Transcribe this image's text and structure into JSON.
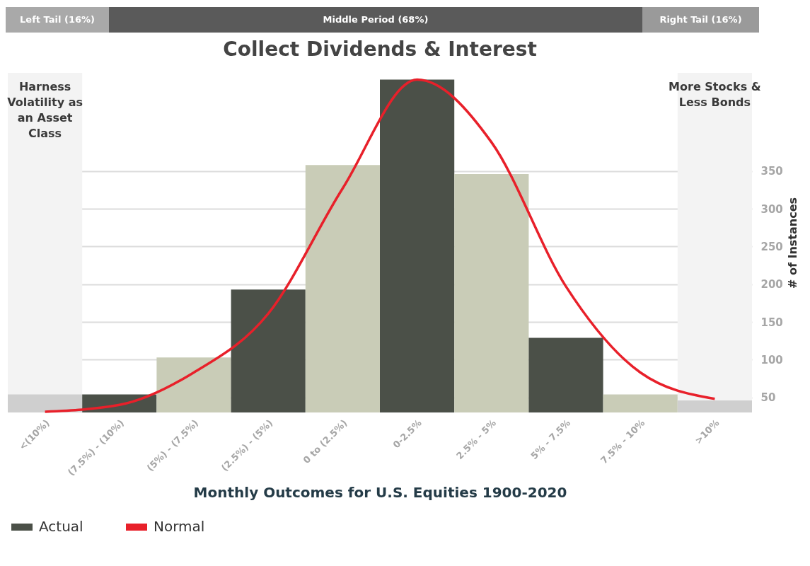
{
  "chart_data": {
    "type": "bar",
    "title": "Collect Dividends & Interest",
    "xlabel": "Monthly Outcomes for U.S. Equities 1900-2020",
    "ylabel": "# of Instances",
    "categories": [
      "<(10%)",
      "(7.5%) - (10%)",
      "(5%) - (7.5%)",
      "(2.5%) - (5%)",
      "0 to (2.5%)",
      "0-2.5%",
      "2.5% - 5%",
      "5% - 7.5%",
      "7.5% - 10%",
      ">10%"
    ],
    "series": [
      {
        "name": "Actual",
        "color": "#4b5048",
        "colors": [
          "#cfcfcf",
          "#4b5048",
          "#c9ccb7",
          "#4b5048",
          "#c9ccb7",
          "#4b5048",
          "#c9ccb7",
          "#4b5048",
          "#c9ccb7",
          "#cfcfcf"
        ],
        "values": [
          54,
          54,
          103,
          193,
          358,
          471,
          346,
          129,
          54,
          46
        ]
      },
      {
        "name": "Normal",
        "type": "line",
        "color": "#e8202a",
        "values": [
          31,
          40,
          83,
          161,
          327,
          471,
          388,
          197,
          83,
          48
        ]
      }
    ],
    "ylim": [
      30,
      480
    ],
    "yticks": [
      50,
      100,
      150,
      200,
      250,
      300,
      350
    ],
    "grid": "y",
    "legend": "bottom",
    "bands": [
      {
        "axis": "x",
        "from": "<(10%)",
        "to": "<(10%)",
        "label": "Harness Volatility as an Asset Class",
        "color": "#f3f3f3"
      },
      {
        "axis": "x",
        "from": ">10%",
        "to": ">10%",
        "label": "More Stocks & Less Bonds",
        "color": "#f3f3f3"
      }
    ],
    "annotations": [
      "Left Tail (16%)",
      "Middle Period (68%)",
      "Right Tail (16%)"
    ]
  }
}
